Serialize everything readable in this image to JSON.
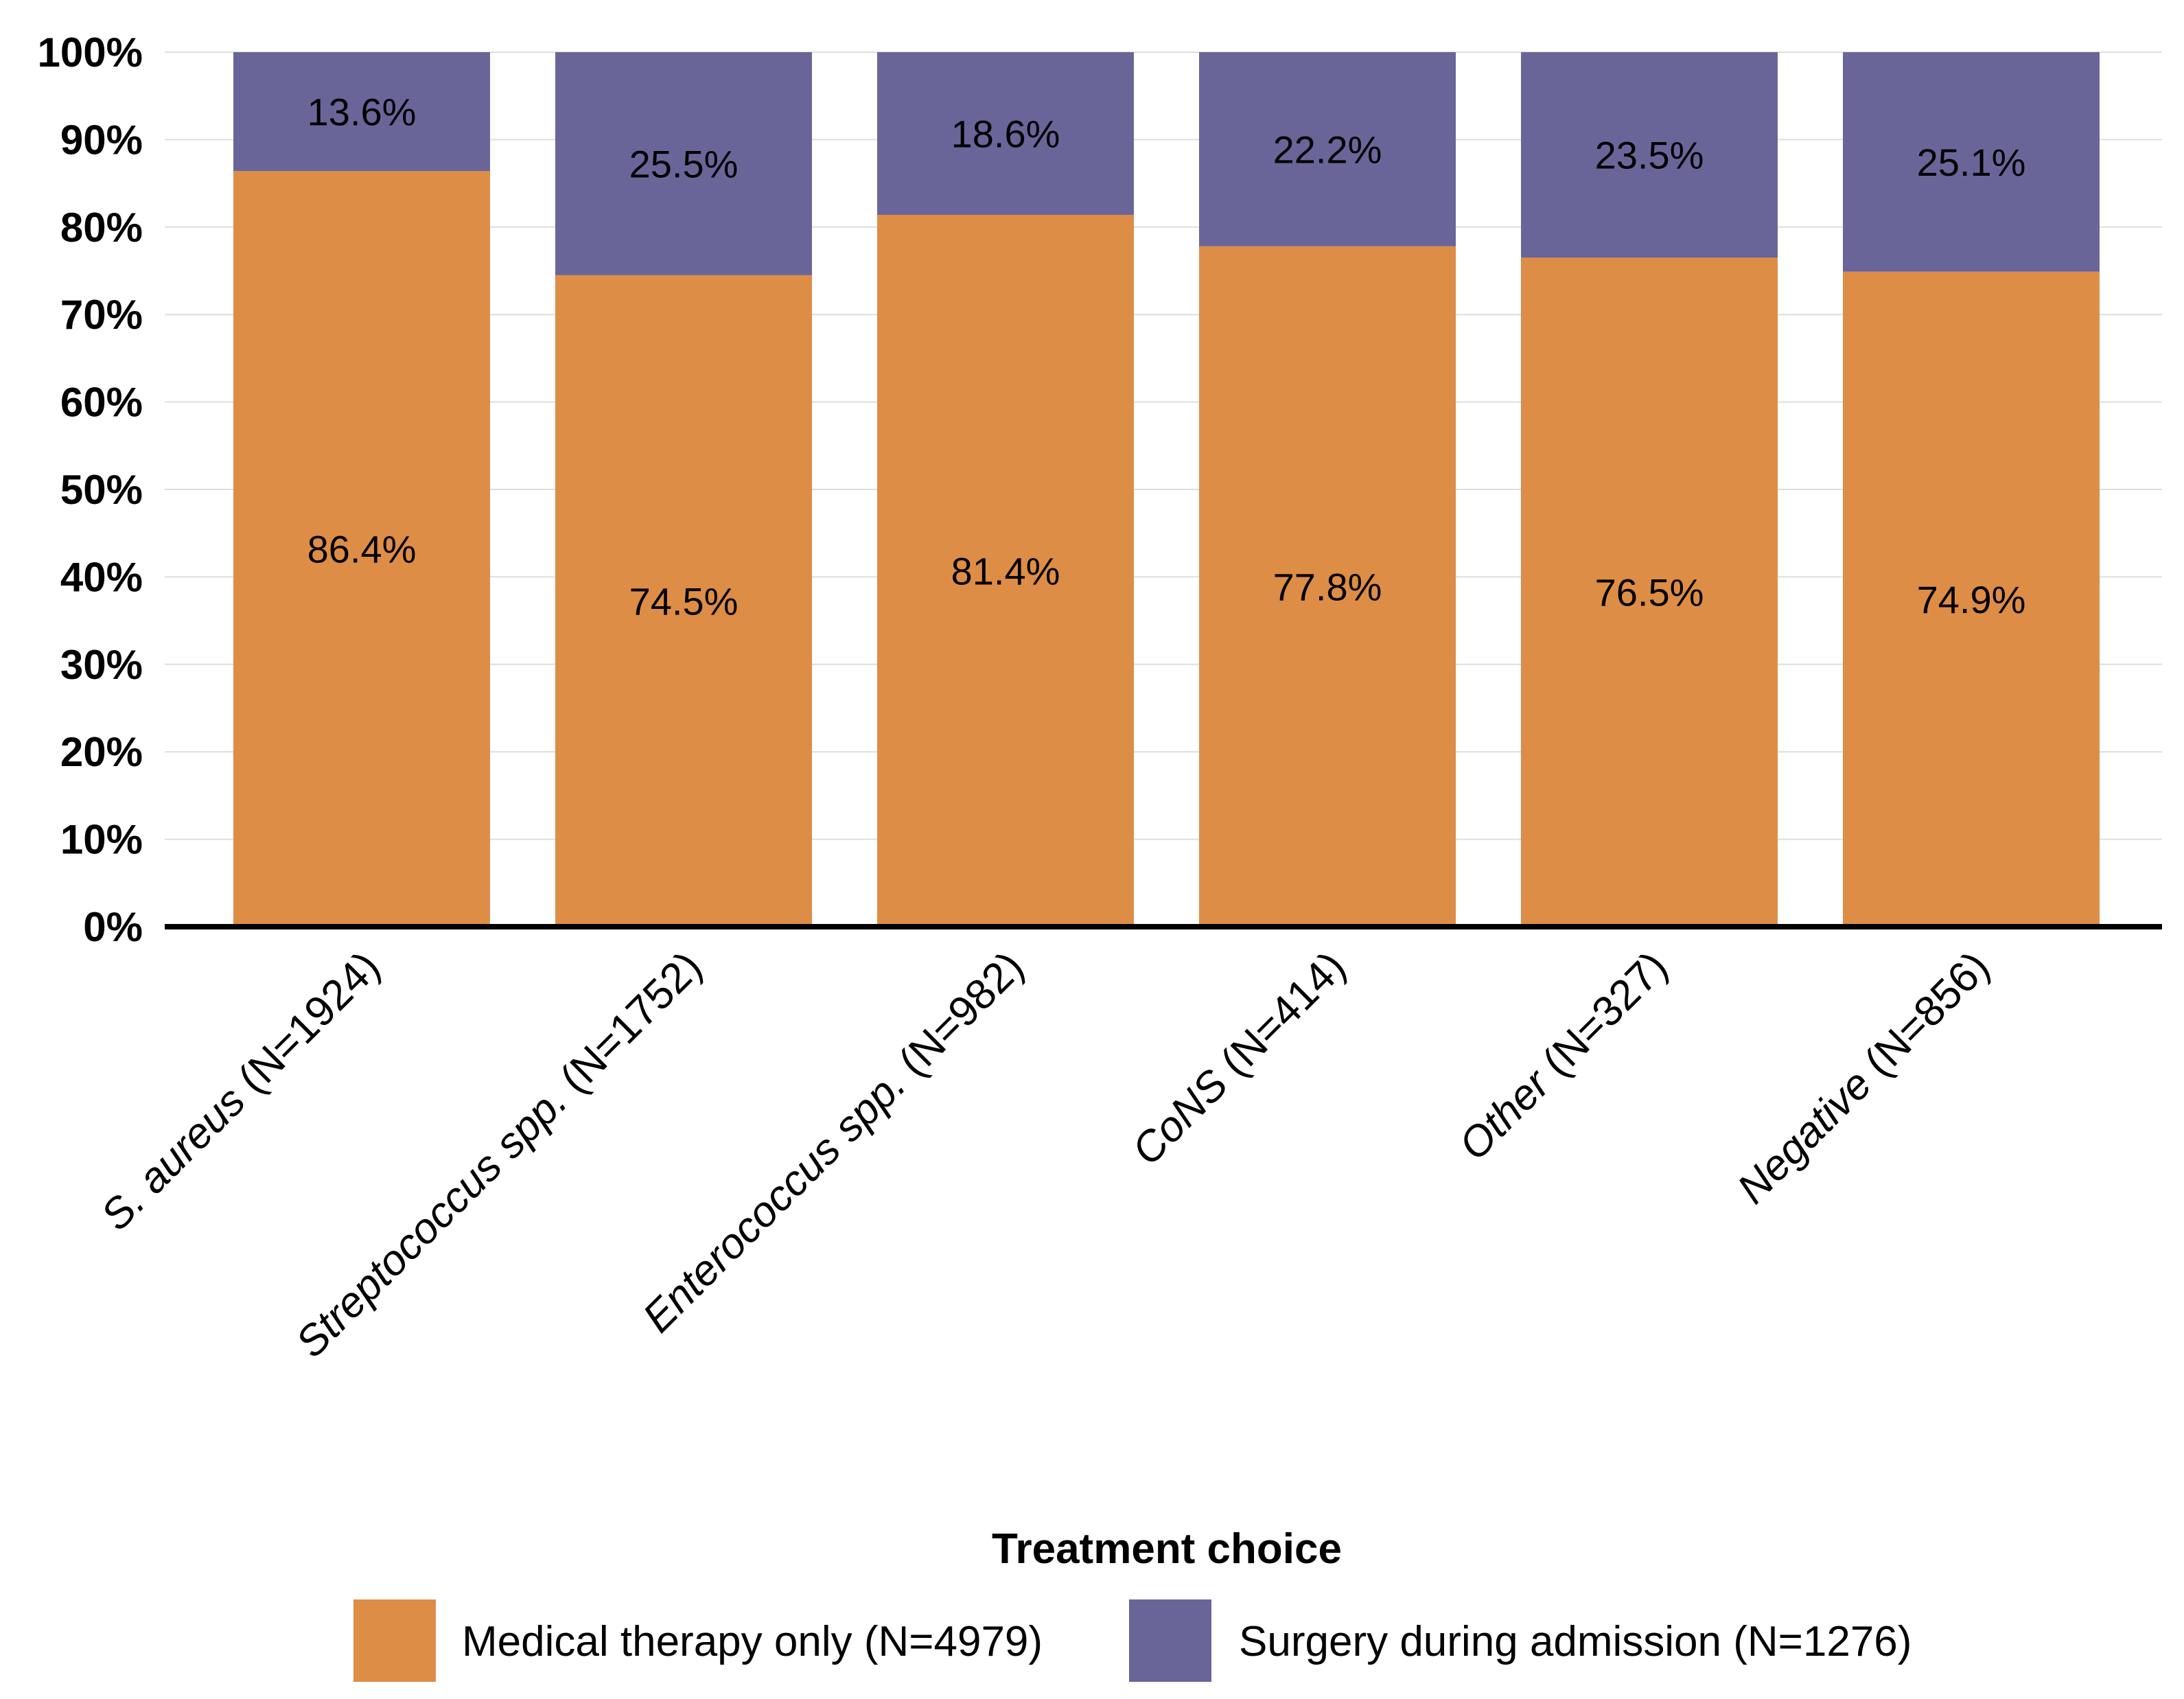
{
  "chart_data": {
    "type": "bar",
    "stacked": true,
    "categories": [
      "S. aureus (N=1924)",
      "Streptococcus spp. (N=1752)",
      "Enterococcus spp. (N=982)",
      "CoNS (N=414)",
      "Other (N=327)",
      "Negative (N=856)"
    ],
    "series": [
      {
        "name": "Medical therapy only (N=4979)",
        "color": "#DE8D46",
        "values": [
          86.4,
          74.5,
          81.4,
          77.8,
          76.5,
          74.9
        ],
        "labels": [
          "86.4%",
          "74.5%",
          "81.4%",
          "77.8%",
          "76.5%",
          "74.9%"
        ]
      },
      {
        "name": "Surgery during admission (N=1276)",
        "color": "#6A6599",
        "values": [
          13.6,
          25.5,
          18.6,
          22.2,
          23.5,
          25.1
        ],
        "labels": [
          "13.6%",
          "25.5%",
          "18.6%",
          "22.2%",
          "23.5%",
          "25.1%"
        ]
      }
    ],
    "y_ticks": [
      "0%",
      "10%",
      "20%",
      "30%",
      "40%",
      "50%",
      "60%",
      "70%",
      "80%",
      "90%",
      "100%"
    ],
    "ylim": [
      0,
      100
    ],
    "grid": true,
    "title": "",
    "xlabel": "",
    "ylabel": "",
    "legend": {
      "title": "Treatment choice",
      "position": "bottom"
    }
  }
}
